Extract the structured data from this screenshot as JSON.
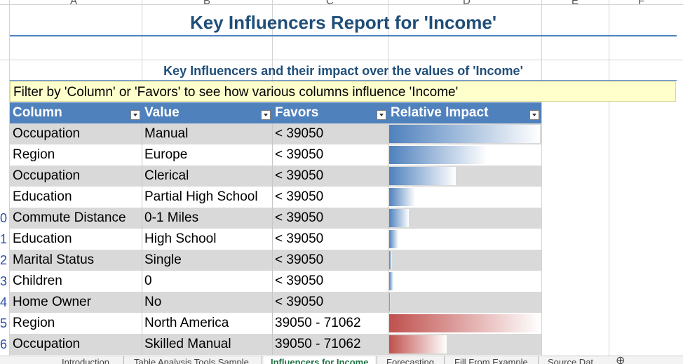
{
  "sheet": {
    "column_letters": [
      "A",
      "B",
      "C",
      "D",
      "E",
      "F"
    ],
    "title": "Key Influencers Report for 'Income'",
    "subtitle": "Key Influencers and their impact over the values of 'Income'",
    "filter_text": "Filter by 'Column' or 'Favors' to see how various columns influence 'Income'",
    "headers": [
      "Column",
      "Value",
      "Favors",
      "Relative Impact"
    ],
    "rows": [
      {
        "rownum": "",
        "column": "Occupation",
        "value": "Manual",
        "favors": "< 39050",
        "impact": 100,
        "group": "low"
      },
      {
        "rownum": "",
        "column": "Region",
        "value": "Europe",
        "favors": "< 39050",
        "impact": 65,
        "group": "low"
      },
      {
        "rownum": "",
        "column": "Occupation",
        "value": "Clerical",
        "favors": "< 39050",
        "impact": 44,
        "group": "low"
      },
      {
        "rownum": "",
        "column": "Education",
        "value": "Partial High School",
        "favors": "< 39050",
        "impact": 17,
        "group": "low"
      },
      {
        "rownum": "0",
        "column": "Commute Distance",
        "value": "0-1 Miles",
        "favors": "< 39050",
        "impact": 13,
        "group": "low"
      },
      {
        "rownum": "1",
        "column": "Education",
        "value": "High School",
        "favors": "< 39050",
        "impact": 6,
        "group": "low"
      },
      {
        "rownum": "2",
        "column": "Marital Status",
        "value": "Single",
        "favors": "< 39050",
        "impact": 2,
        "group": "low"
      },
      {
        "rownum": "3",
        "column": "Children",
        "value": "0",
        "favors": "< 39050",
        "impact": 3,
        "group": "low"
      },
      {
        "rownum": "4",
        "column": "Home Owner",
        "value": "No",
        "favors": "< 39050",
        "impact": 1,
        "group": "low"
      },
      {
        "rownum": "5",
        "column": "Region",
        "value": "North America",
        "favors": "39050 - 71062",
        "impact": 100,
        "group": "mid"
      },
      {
        "rownum": "6",
        "column": "Occupation",
        "value": "Skilled Manual",
        "favors": "39050 - 71062",
        "impact": 38,
        "group": "mid"
      }
    ]
  },
  "colors": {
    "header_bg": "#4f81bd",
    "title": "#1f4e79",
    "filter_bg": "#ffffcc",
    "bar_blue": "#4f81bd",
    "bar_red": "#c0504d",
    "row_shade": "#d9d9d9"
  },
  "tabs": [
    {
      "label": "Introduction",
      "active": false
    },
    {
      "label": "Table Analysis Tools Sample",
      "active": false
    },
    {
      "label": "Influencers for Income",
      "active": true
    },
    {
      "label": "Forecasting",
      "active": false
    },
    {
      "label": "Fill From Example",
      "active": false
    },
    {
      "label": "Source Dat",
      "active": false
    }
  ]
}
